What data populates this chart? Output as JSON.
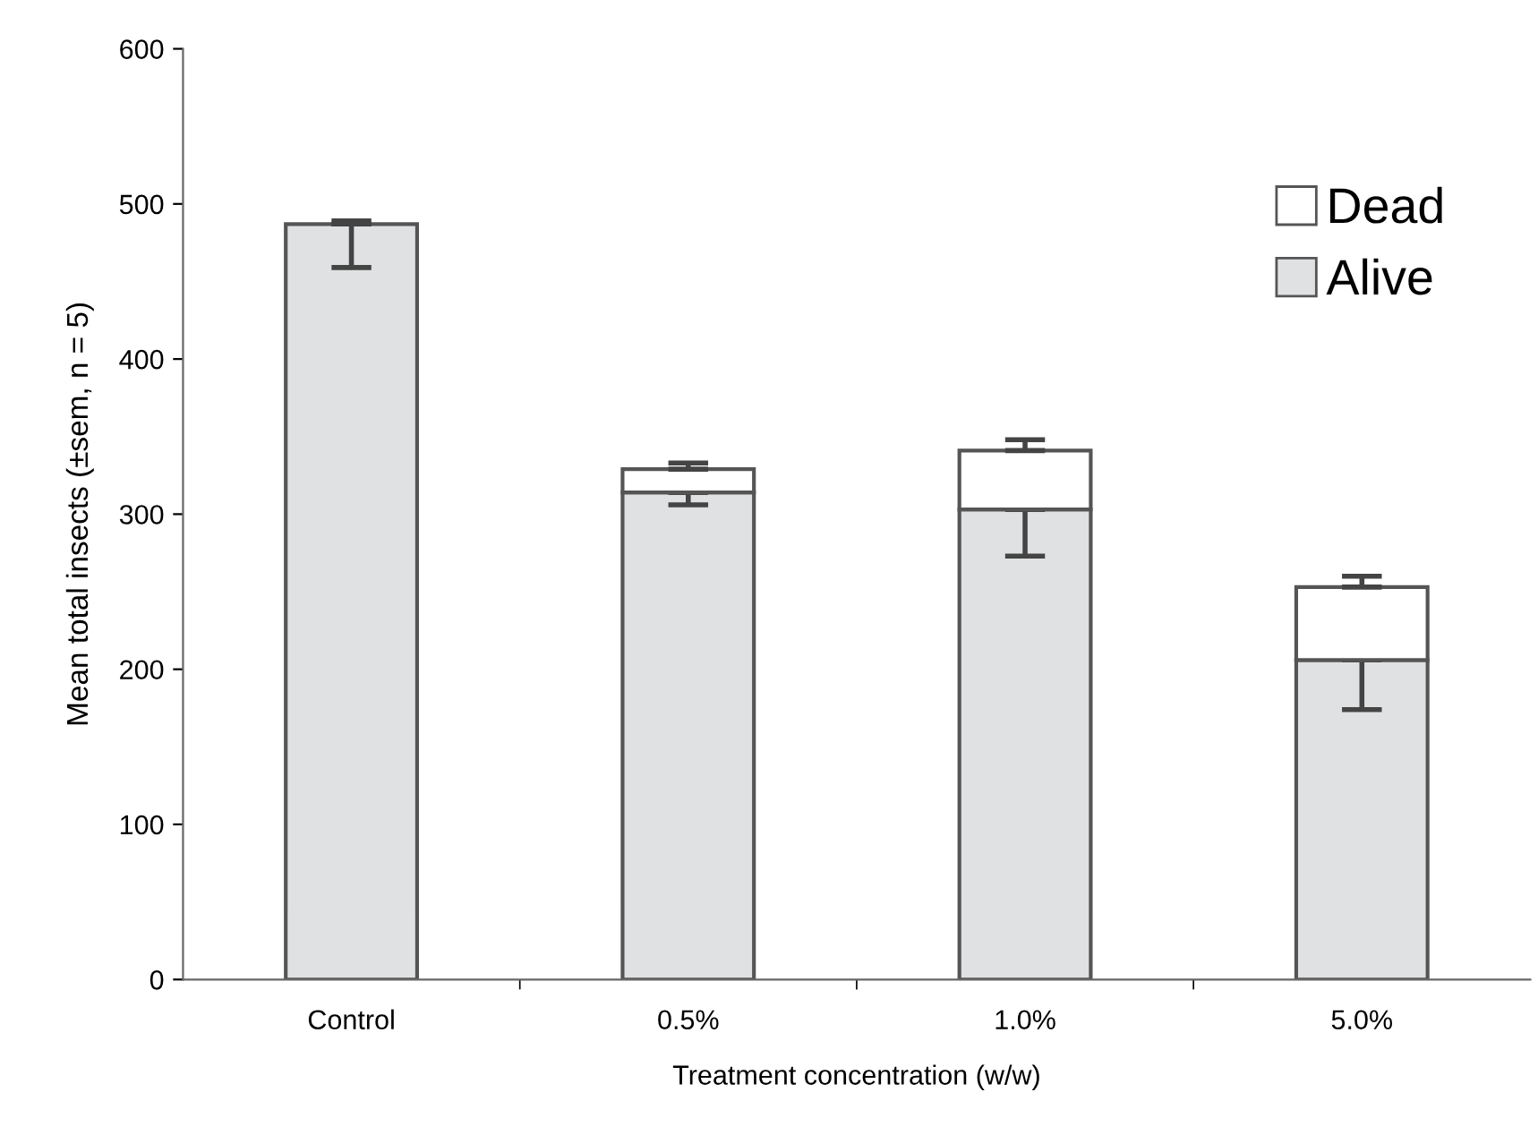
{
  "chart_data": {
    "type": "bar",
    "stacked": true,
    "xlabel": "Treatment concentration (w/w)",
    "ylabel": "Mean total insects (±sem, n = 5)",
    "categories": [
      "Control",
      "0.5%",
      "1.0%",
      "5.0%"
    ],
    "series": [
      {
        "name": "Alive",
        "color": "#dfe1e3",
        "values": [
          487,
          314,
          303,
          206
        ],
        "errors": [
          [
            459,
            487
          ],
          [
            306,
            314
          ],
          [
            273,
            303
          ],
          [
            174,
            206
          ]
        ]
      },
      {
        "name": "Dead",
        "color": "#ffffff",
        "values": [
          0,
          15,
          38,
          47
        ],
        "errors": [
          [
            487,
            489
          ],
          [
            329,
            333
          ],
          [
            341,
            348
          ],
          [
            253,
            260
          ]
        ]
      }
    ],
    "ylim": [
      0,
      600
    ],
    "yticks": [
      0,
      100,
      200,
      300,
      400,
      500,
      600
    ],
    "grid": false,
    "legend": "top right"
  }
}
